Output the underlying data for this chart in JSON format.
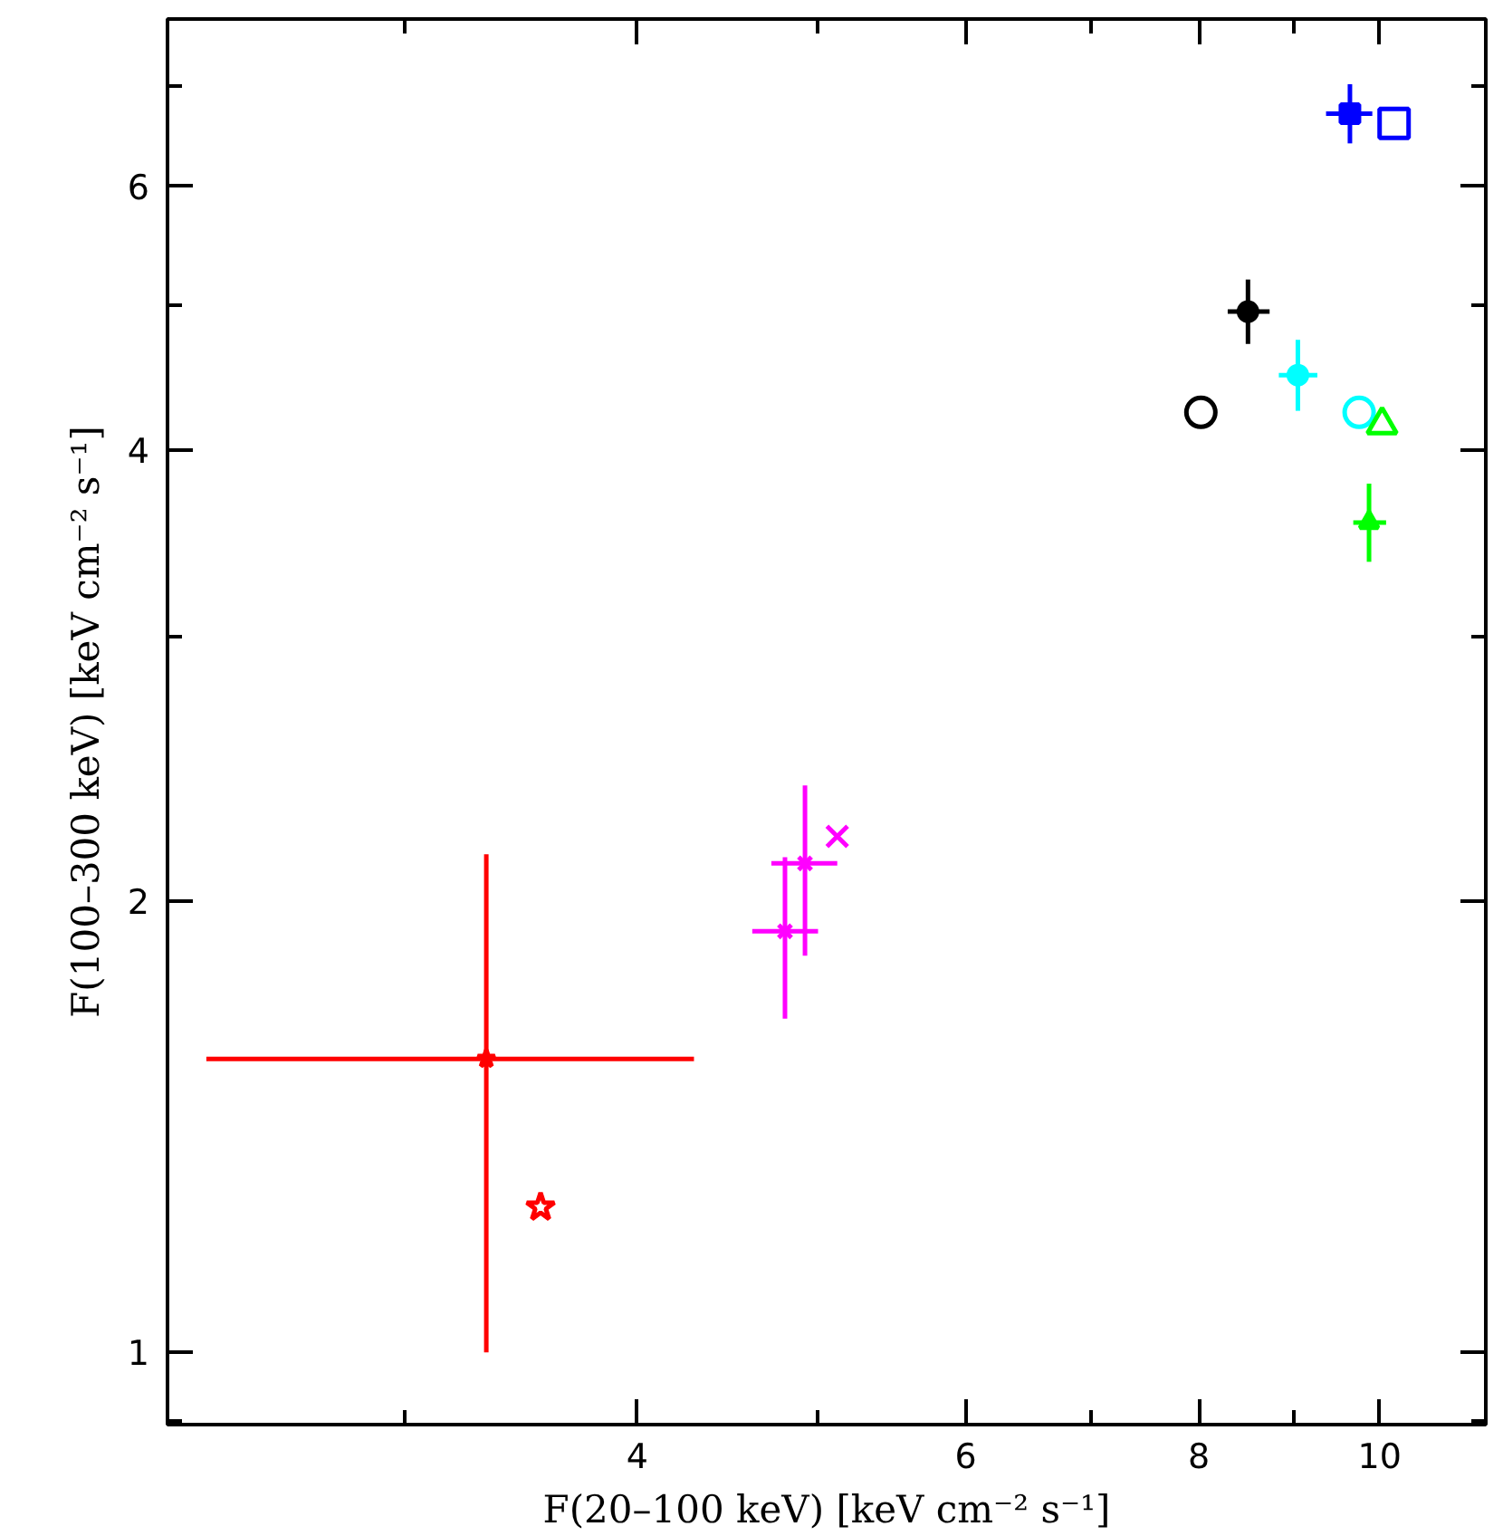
{
  "chart_data": {
    "type": "scatter",
    "xlabel": "F(20–100 keV) [keV cm⁻² s⁻¹]",
    "ylabel": "F(100–300 keV) [keV cm⁻² s⁻¹]",
    "log": "xy",
    "grid": false,
    "xlim": [
      2.24,
      11.4
    ],
    "ylim": [
      0.895,
      7.76
    ],
    "xticks": [
      {
        "value": 3,
        "label": null
      },
      4,
      {
        "value": 5,
        "label": null
      },
      6,
      {
        "value": 7,
        "label": null
      },
      8,
      {
        "value": 9,
        "label": null
      },
      10
    ],
    "yticks": [
      {
        "value": 0.9,
        "label": null
      },
      1,
      2,
      {
        "value": 3,
        "label": null
      },
      4,
      {
        "value": 5,
        "label": null
      },
      6,
      {
        "value": 7,
        "label": null
      }
    ],
    "series": [
      {
        "color": "#ff0000",
        "marker": "star",
        "x": [
          3.32,
          3.55
        ],
        "values": [
          1.57,
          1.25
        ],
        "errors": [
          [
            1.0,
            2.15
          ],
          null
        ],
        "xerrors": [
          [
            2.35,
            4.29
          ],
          null
        ]
      },
      {
        "color": "#ff00ff",
        "marker": "cross",
        "x": [
          4.8,
          4.92,
          5.12
        ],
        "values": [
          1.91,
          2.12,
          2.21
        ],
        "errors": [
          [
            1.67,
            2.14
          ],
          [
            1.84,
            2.39
          ],
          null
        ],
        "xerrors": [
          [
            4.61,
            5.0
          ],
          [
            4.72,
            5.12
          ],
          null
        ]
      },
      {
        "color": "#0000ff",
        "marker": "square",
        "x": [
          9.64,
          10.18
        ],
        "values": [
          6.71,
          6.61
        ],
        "errors": [
          [
            6.41,
            7.02
          ],
          null
        ],
        "xerrors": [
          [
            9.36,
            9.91
          ],
          null
        ]
      },
      {
        "color": "#000000",
        "marker": "circle",
        "x": [
          8.5,
          8.02
        ],
        "values": [
          4.95,
          4.24
        ],
        "errors": [
          [
            4.71,
            5.2
          ],
          null
        ],
        "xerrors": [
          [
            8.29,
            8.73
          ],
          null
        ]
      },
      {
        "color": "#00ffff",
        "marker": "circle",
        "x": [
          9.04,
          9.75
        ],
        "values": [
          4.49,
          4.24
        ],
        "errors": [
          [
            4.25,
            4.74
          ],
          null
        ],
        "xerrors": [
          [
            8.83,
            9.26
          ],
          null
        ]
      },
      {
        "color": "#00ff00",
        "marker": "triangle",
        "x": [
          9.87,
          10.03
        ],
        "values": [
          3.58,
          4.16
        ],
        "errors": [
          [
            3.37,
            3.8
          ],
          null
        ],
        "xerrors": [
          [
            9.68,
            10.08
          ],
          null
        ]
      }
    ]
  }
}
